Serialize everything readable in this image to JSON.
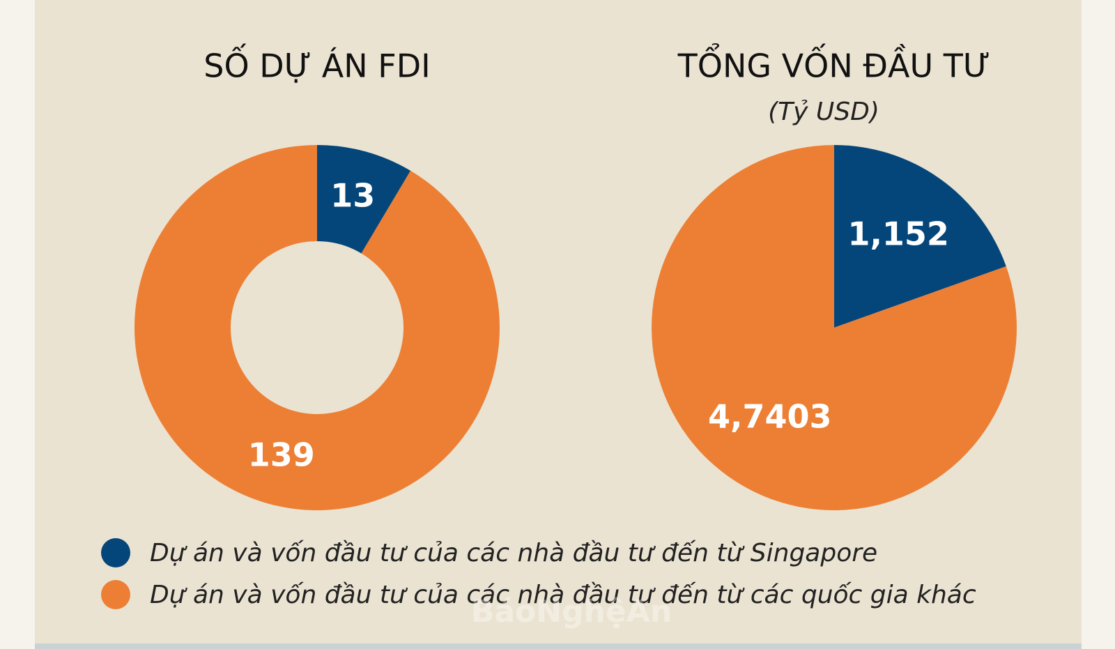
{
  "chart_data": [
    {
      "type": "donut",
      "title": "SỐ DỰ ÁN FDI",
      "values": [
        13,
        139
      ],
      "colors": [
        "#05467a",
        "#ed7f34"
      ]
    },
    {
      "type": "pie",
      "title": "TỔNG VỐN ĐẦU TƯ",
      "subtitle": "(Tỷ USD)",
      "values": [
        1.152,
        4.7403
      ],
      "value_labels": [
        "1,152",
        "4,7403"
      ],
      "colors": [
        "#05467a",
        "#ed7f34"
      ]
    }
  ],
  "legend": [
    "Dự án và vốn đầu tư của các nhà đầu tư đến từ Singapore",
    "Dự án và vốn đầu tư của các nhà đầu tư đến từ các quốc gia khác"
  ],
  "watermark": "BáoNghệAn"
}
